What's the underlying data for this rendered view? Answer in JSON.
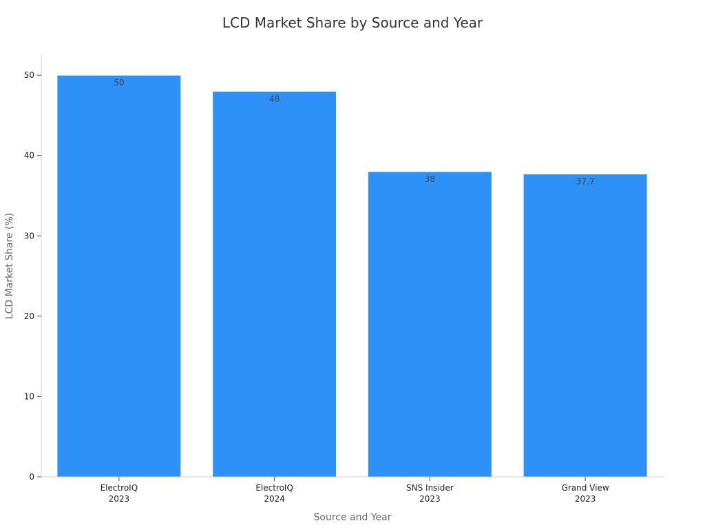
{
  "chart_data": {
    "type": "bar",
    "title": "LCD Market Share by Source and Year",
    "xlabel": "Source and Year",
    "ylabel": "LCD Market Share (%)",
    "categories": [
      [
        "ElectroIQ",
        "2023"
      ],
      [
        "ElectroIQ",
        "2024"
      ],
      [
        "SNS Insider",
        "2023"
      ],
      [
        "Grand View",
        "2023"
      ]
    ],
    "values": [
      50,
      48,
      38,
      37.7
    ],
    "data_labels": [
      "50",
      "48",
      "38",
      "37.7"
    ],
    "yticks": [
      0,
      10,
      20,
      30,
      40,
      50
    ],
    "ylim": [
      0,
      52.5
    ],
    "grid": false,
    "legend": "none",
    "colors": {
      "bar": "#2e91f8",
      "bar_edge": "#ffffff",
      "axis": "#cccccc",
      "title": "#333333",
      "axis_label": "#666666",
      "tick_label": "#222222",
      "data_label": "#444444"
    }
  }
}
